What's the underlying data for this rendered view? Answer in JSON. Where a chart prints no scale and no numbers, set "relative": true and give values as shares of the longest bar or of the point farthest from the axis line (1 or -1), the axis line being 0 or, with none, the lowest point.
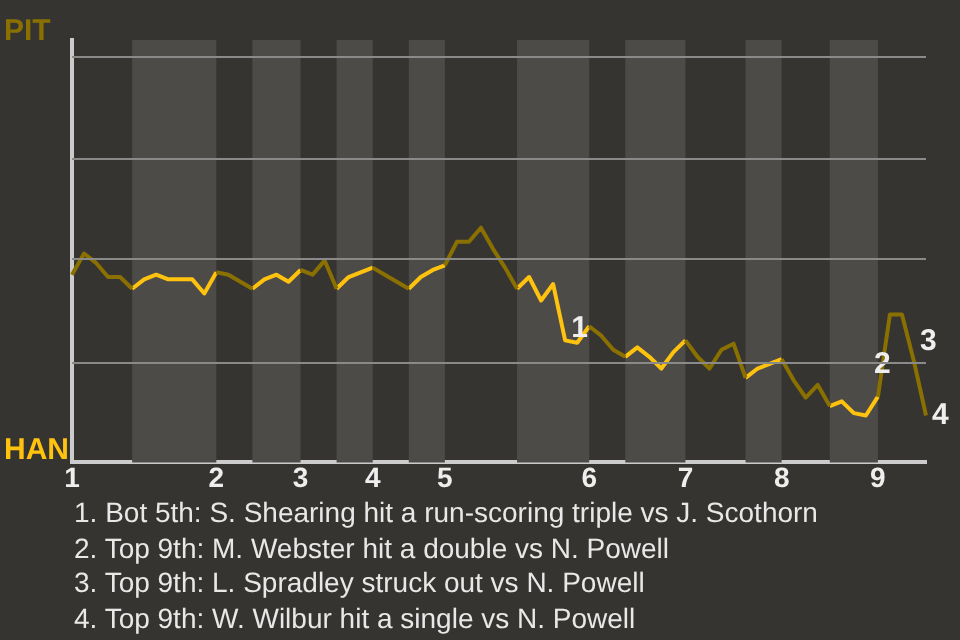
{
  "chart_data": {
    "type": "line",
    "relative": true,
    "marker": "none",
    "ref_lines": [
      {
        "axis": "y",
        "value": 0.43,
        "color": "#8a8a8a"
      },
      {
        "axis": "y",
        "value": 0.87,
        "color": "#8a8a8a"
      },
      {
        "axis": "y",
        "value": 1.3,
        "color": "#8a8a8a"
      },
      {
        "axis": "y",
        "value": 1.73,
        "color": "#8a8a8a"
      }
    ],
    "categories": [
      "1",
      null,
      null,
      null,
      null,
      null,
      null,
      null,
      null,
      null,
      null,
      null,
      "2",
      null,
      null,
      null,
      null,
      null,
      null,
      "3",
      null,
      null,
      null,
      null,
      null,
      "4",
      null,
      null,
      null,
      null,
      null,
      "5",
      null,
      null,
      null,
      null,
      null,
      null,
      null,
      null,
      null,
      null,
      null,
      "6",
      null,
      null,
      null,
      null,
      null,
      null,
      null,
      "7",
      null,
      null,
      null,
      null,
      null,
      null,
      null,
      "8",
      null,
      null,
      null,
      null,
      null,
      null,
      null,
      "9",
      null,
      null,
      null,
      null
    ],
    "series": [
      {
        "color": "#8a7000",
        "values": [
          0.8,
          0.89,
          0.85,
          0.79,
          0.79,
          0.74,
          null,
          null,
          null,
          null,
          null,
          null,
          0.81,
          0.8,
          0.77,
          0.74,
          null,
          null,
          null,
          0.82,
          0.8,
          0.86,
          0.74,
          null,
          null,
          0.83,
          0.8,
          0.77,
          0.74,
          null,
          null,
          0.84,
          0.94,
          0.94,
          1,
          0.91,
          0.83,
          0.74,
          null,
          null,
          null,
          null,
          null,
          0.58,
          0.54,
          0.48,
          0.45,
          null,
          null,
          null,
          null,
          0.52,
          0.45,
          0.4,
          0.48,
          0.506,
          0.36,
          null,
          null,
          0.44,
          0.35,
          0.276,
          0.33,
          0.24,
          null,
          null,
          null,
          0.28,
          0.63,
          0.63,
          0.43,
          0.2
        ]
      },
      {
        "color": "#ffc20e",
        "values": [
          null,
          null,
          null,
          null,
          null,
          0.74,
          0.78,
          0.8,
          0.78,
          0.78,
          0.78,
          0.72,
          0.81,
          null,
          null,
          0.74,
          0.78,
          0.8,
          0.77,
          0.82,
          null,
          null,
          0.74,
          0.79,
          0.81,
          0.83,
          null,
          null,
          0.74,
          0.79,
          0.82,
          0.84,
          null,
          null,
          null,
          null,
          null,
          0.74,
          0.79,
          0.69,
          0.76,
          0.52,
          0.51,
          0.58,
          null,
          null,
          0.45,
          0.49,
          0.45,
          0.4,
          0.47,
          0.52,
          null,
          null,
          null,
          null,
          0.36,
          0.4,
          0.42,
          0.44,
          null,
          null,
          null,
          0.24,
          0.26,
          0.21,
          0.2,
          0.28,
          null,
          null,
          null,
          null
        ]
      }
    ],
    "annotations": [
      "PIT",
      "HAN",
      "1",
      "2",
      "3",
      "4",
      "1. Bot 5th: S. Shearing hit a run-scoring triple vs J. Scothorn",
      "2. Top 9th: M. Webster hit a double vs N. Powell",
      "3. Top 9th: L. Spradley struck out vs N. Powell",
      "4. Top 9th: W. Wilbur hit a single vs N. Powell"
    ]
  }
}
